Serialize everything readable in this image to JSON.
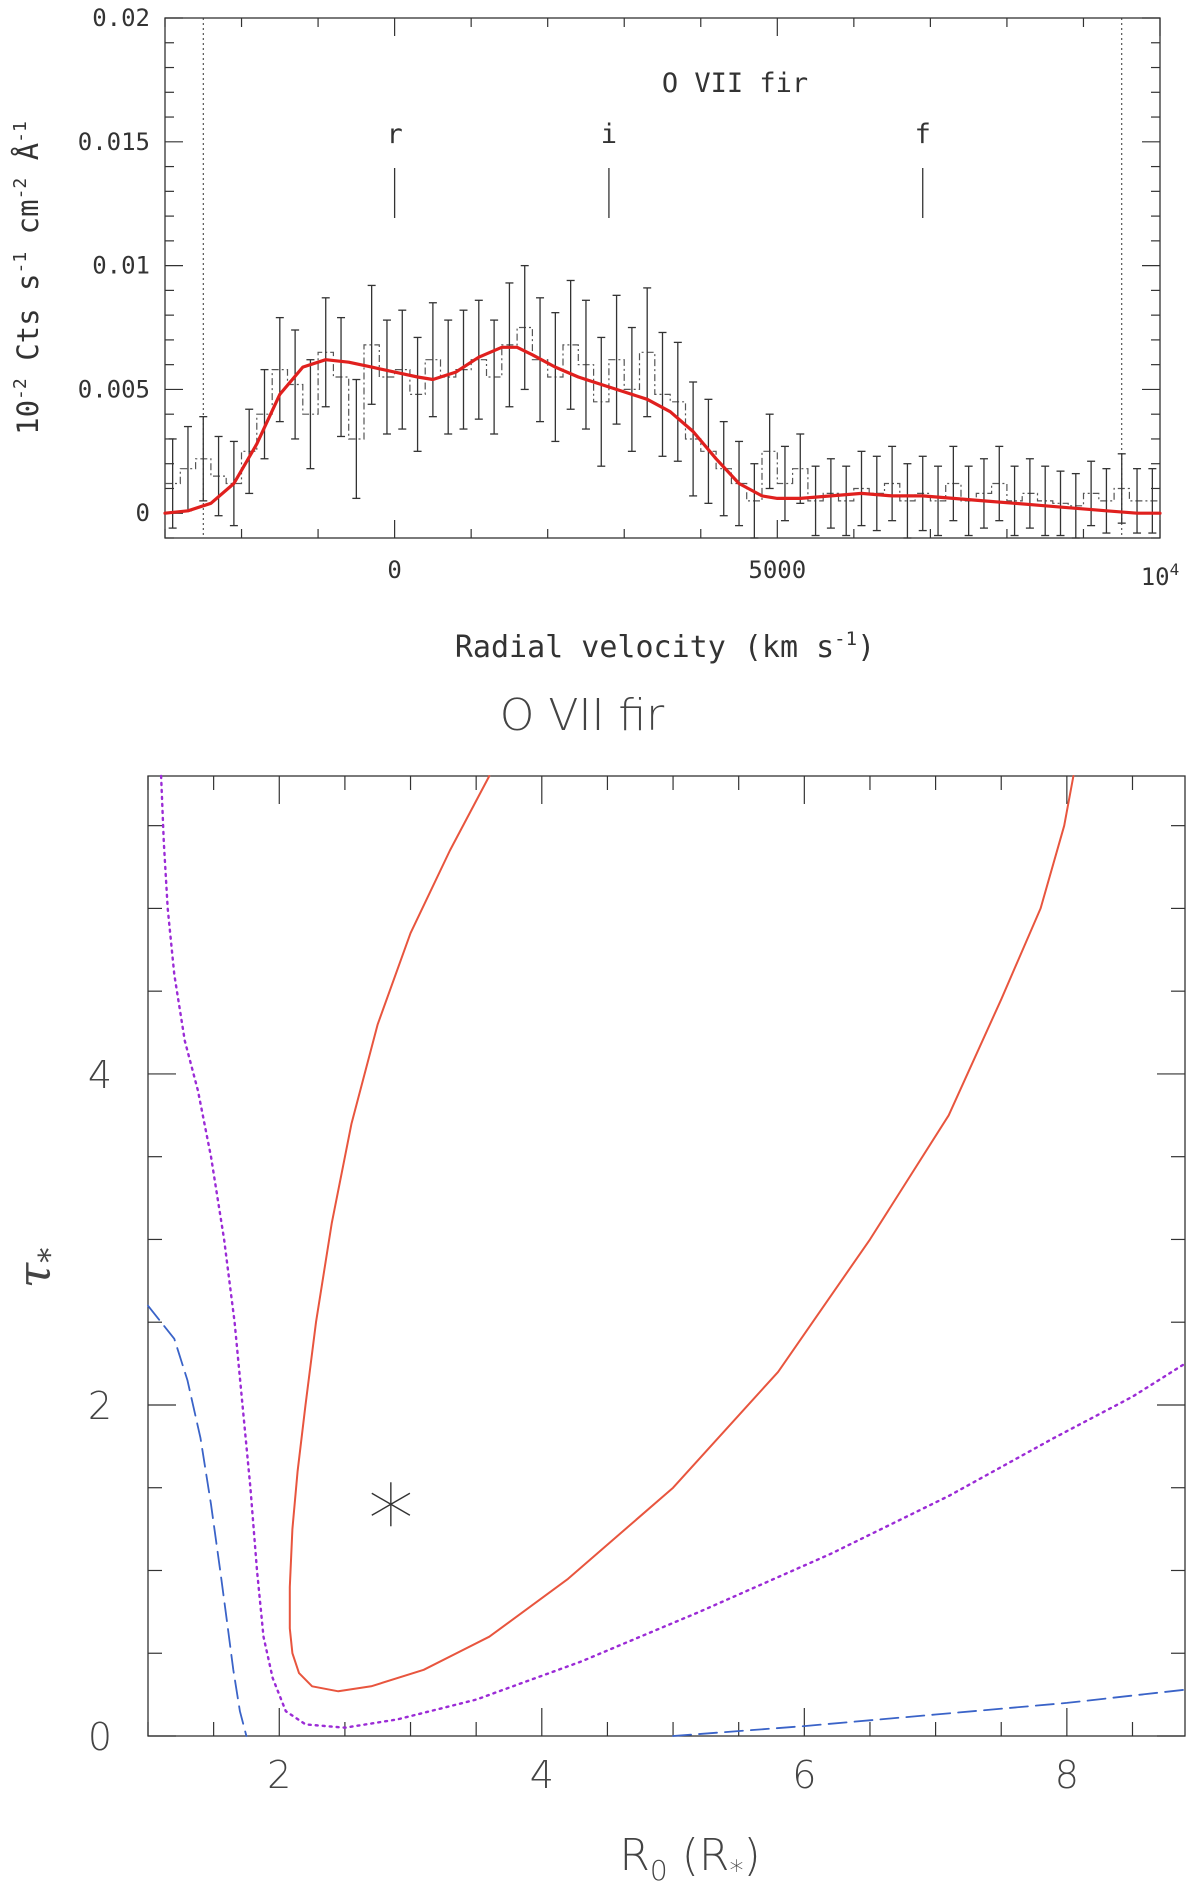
{
  "chart_data": [
    {
      "type": "line",
      "annotation": "O VII fir",
      "xlabel": "Radial velocity (km s",
      "xlabel_sup": "-1",
      "xlabel_end": ")",
      "ylabel_parts": [
        "10",
        "-2",
        " Cts s",
        "-1",
        " cm",
        "-2",
        " Å",
        "-1"
      ],
      "xlim": [
        -3000,
        10000
      ],
      "ylim": [
        -0.001,
        0.02
      ],
      "xticks": [
        {
          "v": 0,
          "label": "0"
        },
        {
          "v": 5000,
          "label": "5000"
        }
      ],
      "xtick_last": {
        "v": 10000,
        "base": "10",
        "exp": "4"
      },
      "yticks": [
        {
          "v": 0,
          "label": "0"
        },
        {
          "v": 0.005,
          "label": "0.005"
        },
        {
          "v": 0.01,
          "label": "0.01"
        },
        {
          "v": 0.015,
          "label": "0.015"
        },
        {
          "v": 0.02,
          "label": "0.02"
        }
      ],
      "vlines": [
        -2500,
        9500
      ],
      "line_markers": [
        {
          "label": "r",
          "x": 0
        },
        {
          "label": "i",
          "x": 2800
        },
        {
          "label": "f",
          "x": 6900
        }
      ],
      "colors": {
        "model": "#e0201e",
        "data": "#333333"
      },
      "series": [
        {
          "style": "model",
          "x": [
            -3000,
            -2700,
            -2400,
            -2100,
            -1800,
            -1500,
            -1200,
            -900,
            -600,
            -300,
            0,
            300,
            500,
            800,
            1100,
            1400,
            1600,
            1800,
            2100,
            2400,
            2700,
            3000,
            3300,
            3600,
            3900,
            4200,
            4500,
            4800,
            5000,
            5300,
            5700,
            6100,
            6500,
            6900,
            7300,
            7700,
            8100,
            8500,
            8900,
            9300,
            9700,
            10000
          ],
          "y": [
            0.0,
            0.0001,
            0.0004,
            0.0012,
            0.0028,
            0.0048,
            0.0059,
            0.0062,
            0.0061,
            0.0059,
            0.0057,
            0.0055,
            0.0054,
            0.0057,
            0.0063,
            0.0067,
            0.0067,
            0.0064,
            0.0059,
            0.0055,
            0.0052,
            0.0049,
            0.0046,
            0.0041,
            0.0033,
            0.0022,
            0.0012,
            0.0007,
            0.0006,
            0.0006,
            0.0007,
            0.0008,
            0.0007,
            0.0007,
            0.0006,
            0.0005,
            0.0004,
            0.0003,
            0.0002,
            0.0001,
            0.0,
            0.0
          ]
        },
        {
          "style": "data",
          "bin_width": 200,
          "x": [
            -2900,
            -2700,
            -2500,
            -2300,
            -2100,
            -1900,
            -1700,
            -1500,
            -1300,
            -1100,
            -900,
            -700,
            -500,
            -300,
            -100,
            100,
            300,
            500,
            700,
            900,
            1100,
            1300,
            1500,
            1700,
            1900,
            2100,
            2300,
            2500,
            2700,
            2900,
            3100,
            3300,
            3500,
            3700,
            3900,
            4100,
            4300,
            4500,
            4700,
            4900,
            5100,
            5300,
            5500,
            5700,
            5900,
            6100,
            6300,
            6500,
            6700,
            6900,
            7100,
            7300,
            7500,
            7700,
            7900,
            8100,
            8300,
            8500,
            8700,
            8900,
            9100,
            9300,
            9500,
            9700,
            9900
          ],
          "y": [
            0.0012,
            0.0018,
            0.0022,
            0.0015,
            0.0012,
            0.0025,
            0.004,
            0.0058,
            0.0052,
            0.004,
            0.0065,
            0.0055,
            0.003,
            0.0068,
            0.0055,
            0.0058,
            0.0048,
            0.0062,
            0.0055,
            0.0058,
            0.0062,
            0.0055,
            0.0068,
            0.0075,
            0.0062,
            0.0055,
            0.0068,
            0.006,
            0.0045,
            0.0062,
            0.005,
            0.0065,
            0.0048,
            0.0045,
            0.003,
            0.0025,
            0.0018,
            0.0012,
            0.0005,
            0.0025,
            0.0012,
            0.0018,
            0.0005,
            0.0008,
            0.0005,
            0.001,
            0.0008,
            0.0012,
            0.0005,
            0.0008,
            0.0005,
            0.0012,
            0.0005,
            0.0008,
            0.0012,
            0.0005,
            0.0008,
            0.0005,
            0.0004,
            0.0003,
            0.0008,
            0.0005,
            0.001,
            0.0005,
            0.0005
          ],
          "err": [
            0.0018,
            0.0017,
            0.0017,
            0.0016,
            0.0017,
            0.0017,
            0.0018,
            0.0021,
            0.0022,
            0.0022,
            0.0022,
            0.0024,
            0.0024,
            0.0024,
            0.0023,
            0.0024,
            0.0023,
            0.0023,
            0.0023,
            0.0024,
            0.0024,
            0.0023,
            0.0025,
            0.0025,
            0.0025,
            0.0026,
            0.0026,
            0.0026,
            0.0026,
            0.0026,
            0.0025,
            0.0026,
            0.0025,
            0.0024,
            0.0023,
            0.0021,
            0.0019,
            0.0017,
            0.0015,
            0.0015,
            0.0015,
            0.0014,
            0.0014,
            0.0014,
            0.0014,
            0.0015,
            0.0015,
            0.0015,
            0.0015,
            0.0015,
            0.0014,
            0.0015,
            0.0014,
            0.0014,
            0.0015,
            0.0014,
            0.0014,
            0.0014,
            0.0013,
            0.0013,
            0.0013,
            0.0013,
            0.0014,
            0.0013,
            0.0013
          ]
        }
      ]
    },
    {
      "type": "line",
      "title": "O VII fir",
      "xlabel": "R",
      "xlabel_sub": "0",
      "xlabel_end": " (R",
      "xlabel_end_sub": "*",
      "xlabel_close": ")",
      "ylabel": "τ",
      "ylabel_sub": "*",
      "xlim": [
        1.0,
        8.9
      ],
      "ylim": [
        0,
        5.8
      ],
      "xticks": [
        {
          "v": 2,
          "label": "2"
        },
        {
          "v": 4,
          "label": "4"
        },
        {
          "v": 6,
          "label": "6"
        },
        {
          "v": 8,
          "label": "8"
        }
      ],
      "yticks": [
        {
          "v": 0,
          "label": "0"
        },
        {
          "v": 2,
          "label": "2"
        },
        {
          "v": 4,
          "label": "4"
        }
      ],
      "best_fit": {
        "x": 2.85,
        "y": 1.4
      },
      "colors": {
        "solid": "#e8553e",
        "dotted": "#9b2bd6",
        "dashed": "#3a63c8"
      },
      "series": [
        {
          "style": "solid",
          "x": [
            3.6,
            3.3,
            3.0,
            2.75,
            2.55,
            2.4,
            2.28,
            2.2,
            2.14,
            2.1,
            2.08,
            2.08,
            2.1,
            2.15,
            2.25,
            2.45,
            2.7,
            3.1,
            3.6,
            4.2,
            5.0,
            5.8,
            6.5,
            7.1,
            7.5,
            7.8,
            7.98,
            8.05
          ],
          "y": [
            5.8,
            5.35,
            4.85,
            4.3,
            3.7,
            3.1,
            2.5,
            2.0,
            1.6,
            1.25,
            0.9,
            0.65,
            0.5,
            0.38,
            0.3,
            0.27,
            0.3,
            0.4,
            0.6,
            0.95,
            1.5,
            2.2,
            3.0,
            3.75,
            4.45,
            5.0,
            5.5,
            5.8
          ]
        },
        {
          "style": "dotted",
          "x": [
            1.1,
            1.12,
            1.15,
            1.2,
            1.28,
            1.38,
            1.48,
            1.58,
            1.66,
            1.72,
            1.78,
            1.83,
            1.88,
            1.95,
            2.05,
            2.2,
            2.5,
            2.9,
            3.5,
            4.3,
            5.2,
            6.2,
            7.1,
            7.9,
            8.5,
            8.9
          ],
          "y": [
            5.8,
            5.4,
            5.0,
            4.6,
            4.2,
            3.9,
            3.5,
            3.0,
            2.5,
            2.0,
            1.5,
            1.0,
            0.6,
            0.35,
            0.15,
            0.07,
            0.05,
            0.1,
            0.22,
            0.45,
            0.75,
            1.1,
            1.45,
            1.8,
            2.05,
            2.25
          ]
        },
        {
          "style": "dashed",
          "x": [
            1.0,
            1.1,
            1.2,
            1.3,
            1.4,
            1.48,
            1.55,
            1.6,
            1.65,
            1.7,
            1.75
          ],
          "y": [
            2.6,
            2.5,
            2.4,
            2.15,
            1.8,
            1.4,
            1.0,
            0.7,
            0.4,
            0.15,
            0.0
          ]
        },
        {
          "style": "dashed",
          "x": [
            5.0,
            6.0,
            7.0,
            8.0,
            8.9
          ],
          "y": [
            0.0,
            0.06,
            0.13,
            0.2,
            0.28
          ]
        }
      ]
    }
  ]
}
